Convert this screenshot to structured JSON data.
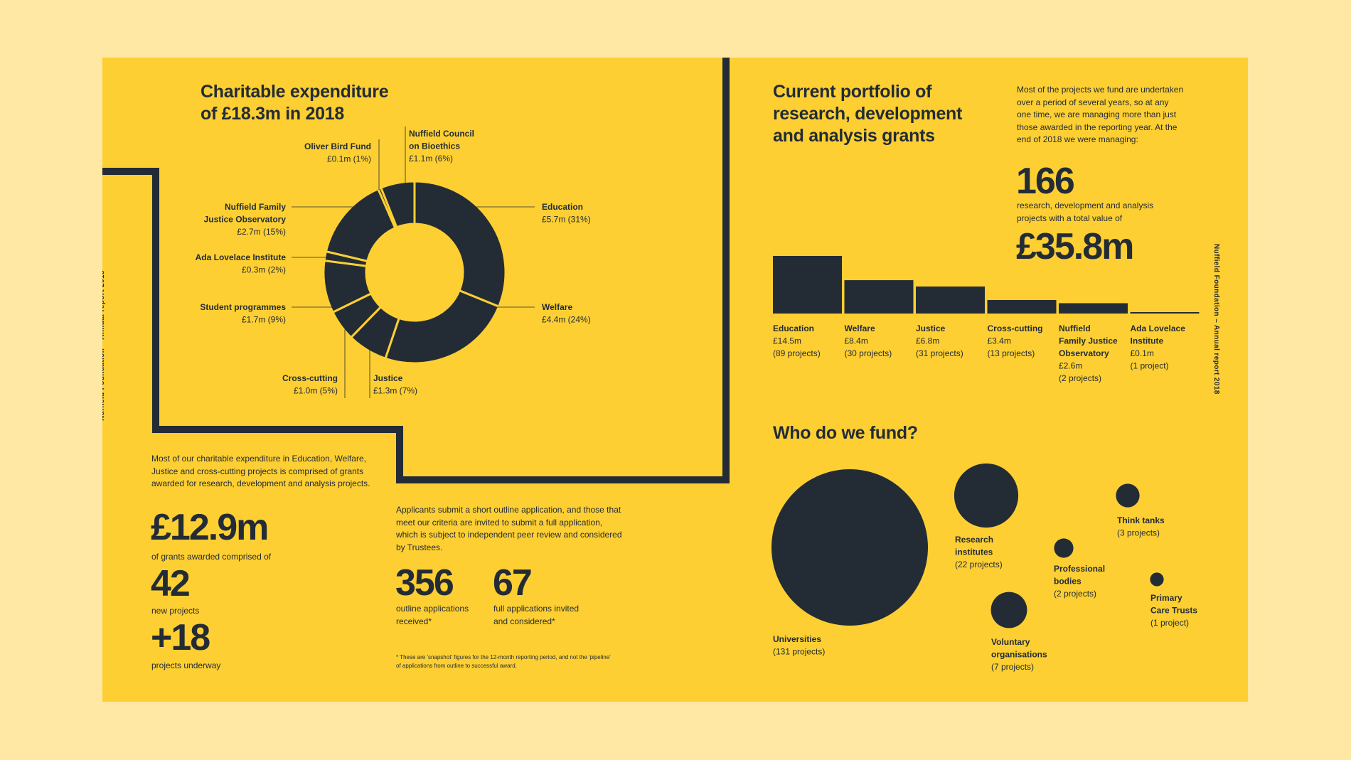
{
  "side_label": "Nuffield Foundation – Annual report 2018",
  "expenditure": {
    "title_l1": "Charitable expenditure",
    "title_l2": "of £18.3m in 2018"
  },
  "grants": {
    "intro": "Most of our charitable expenditure in Education, Welfare, Justice and cross-cutting projects is comprised of grants awarded for research, development and analysis projects.",
    "amount": "£12.9m",
    "amount_caption": "of grants awarded comprised of",
    "new_count": "42",
    "new_caption": "new projects",
    "underway_count": "+18",
    "underway_caption": "projects underway"
  },
  "applications": {
    "intro": "Applicants submit a short outline application, and those that meet our criteria are invited to submit a full application, which is subject to independent peer review and considered by Trustees.",
    "outline_count": "356",
    "outline_caption": "outline applications received*",
    "full_count": "67",
    "full_caption": "full applications invited and considered*",
    "footnote": "* These are 'snapshot' figures for the 12-month reporting period, and not the 'pipeline' of applications from outline to successful award."
  },
  "portfolio": {
    "title_l1": "Current portfolio of",
    "title_l2": "research, development",
    "title_l3": "and analysis grants",
    "intro": "Most of the projects we fund are undertaken over a period of several years, so at any one time, we are managing more than just those awarded in the reporting year. At the end of 2018 we were managing:",
    "project_count": "166",
    "project_caption": "research, development and analysis projects with a total value of",
    "total_value": "£35.8m"
  },
  "fund": {
    "title": "Who do we fund?"
  },
  "chart_data": [
    {
      "type": "pie",
      "title": "Charitable expenditure of £18.3m in 2018",
      "slices": [
        {
          "label": "Education",
          "value": 5.7,
          "percent": 31,
          "text": "£5.7m (31%)"
        },
        {
          "label": "Welfare",
          "value": 4.4,
          "percent": 24,
          "text": "£4.4m (24%)"
        },
        {
          "label": "Justice",
          "value": 1.3,
          "percent": 7,
          "text": "£1.3m (7%)"
        },
        {
          "label": "Cross-cutting",
          "value": 1.0,
          "percent": 5,
          "text": "£1.0m (5%)"
        },
        {
          "label": "Student programmes",
          "value": 1.7,
          "percent": 9,
          "text": "£1.7m (9%)"
        },
        {
          "label": "Ada Lovelace Institute",
          "value": 0.3,
          "percent": 2,
          "text": "£0.3m (2%)"
        },
        {
          "label": "Nuffield Family Justice Observatory",
          "value": 2.7,
          "percent": 15,
          "text": "£2.7m (15%)"
        },
        {
          "label": "Oliver Bird Fund",
          "value": 0.1,
          "percent": 1,
          "text": "£0.1m (1%)"
        },
        {
          "label": "Nuffield Council on Bioethics",
          "value": 1.1,
          "percent": 6,
          "text": "£1.1m (6%)"
        }
      ]
    },
    {
      "type": "bar",
      "title": "Current portfolio of research, development and analysis grants",
      "categories": [
        "Education",
        "Welfare",
        "Justice",
        "Cross-cutting",
        "Nuffield Family Justice Observatory",
        "Ada Lovelace Institute"
      ],
      "values": [
        14.5,
        8.4,
        6.8,
        3.4,
        2.6,
        0.1
      ],
      "value_text": [
        "£14.5m",
        "£8.4m",
        "£6.8m",
        "£3.4m",
        "£2.6m",
        "£0.1m"
      ],
      "projects_text": [
        "(89 projects)",
        "(30 projects)",
        "(31 projects)",
        "(13 projects)",
        "(2 projects)",
        "(1 project)"
      ]
    },
    {
      "type": "scatter",
      "title": "Who do we fund?",
      "points": [
        {
          "label": "Universities",
          "projects": 131,
          "text": "(131 projects)"
        },
        {
          "label": "Research institutes",
          "projects": 22,
          "text": "(22 projects)"
        },
        {
          "label": "Voluntary organisations",
          "projects": 7,
          "text": "(7 projects)"
        },
        {
          "label": "Think tanks",
          "projects": 3,
          "text": "(3 projects)"
        },
        {
          "label": "Professional bodies",
          "projects": 2,
          "text": "(2 projects)"
        },
        {
          "label": "Primary Care Trusts",
          "projects": 1,
          "text": "(1 project)"
        }
      ]
    }
  ]
}
